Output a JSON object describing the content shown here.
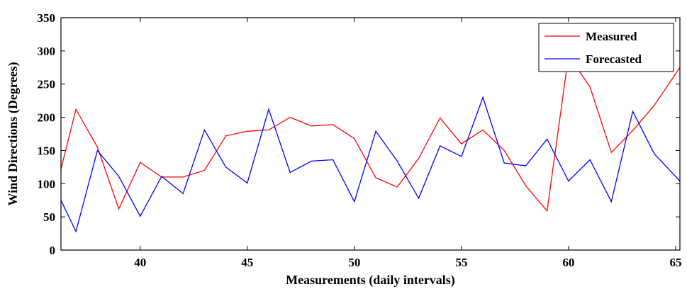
{
  "chart_data": {
    "type": "line",
    "title": "",
    "xlabel": "Measurements (daily intervals)",
    "ylabel": "Wind Directions (Degrees)",
    "xlim": [
      36.3,
      65.2
    ],
    "ylim": [
      0,
      350
    ],
    "xticks": [
      40,
      45,
      50,
      55,
      60,
      65
    ],
    "yticks": [
      0,
      50,
      100,
      150,
      200,
      250,
      300,
      350
    ],
    "grid": false,
    "legend_position": "top-right",
    "series": [
      {
        "name": "Measured",
        "color": "#ff0000",
        "x": [
          36.3,
          37,
          38,
          39,
          40,
          41,
          42,
          43,
          44,
          45,
          46,
          47,
          48,
          49,
          50,
          51,
          52,
          53,
          54,
          55,
          56,
          57,
          58,
          59,
          60,
          61,
          62,
          63,
          64,
          65.2
        ],
        "y": [
          122,
          212,
          155,
          62,
          132,
          110,
          110,
          120,
          172,
          179,
          181,
          200,
          187,
          189,
          168,
          109,
          95,
          138,
          199,
          160,
          181,
          150,
          97,
          59,
          293,
          246,
          147,
          180,
          218,
          275
        ]
      },
      {
        "name": "Forecasted",
        "color": "#0000ff",
        "x": [
          36.3,
          37,
          38,
          39,
          40,
          41,
          42,
          43,
          44,
          45,
          46,
          47,
          48,
          49,
          50,
          51,
          52,
          53,
          54,
          55,
          56,
          57,
          58,
          59,
          60,
          61,
          62,
          63,
          64,
          65.2
        ],
        "y": [
          75,
          28,
          150,
          111,
          51,
          111,
          85,
          181,
          125,
          101,
          212,
          117,
          134,
          136,
          73,
          179,
          134,
          78,
          157,
          141,
          230,
          131,
          127,
          167,
          104,
          136,
          73,
          209,
          145,
          104
        ]
      }
    ]
  }
}
